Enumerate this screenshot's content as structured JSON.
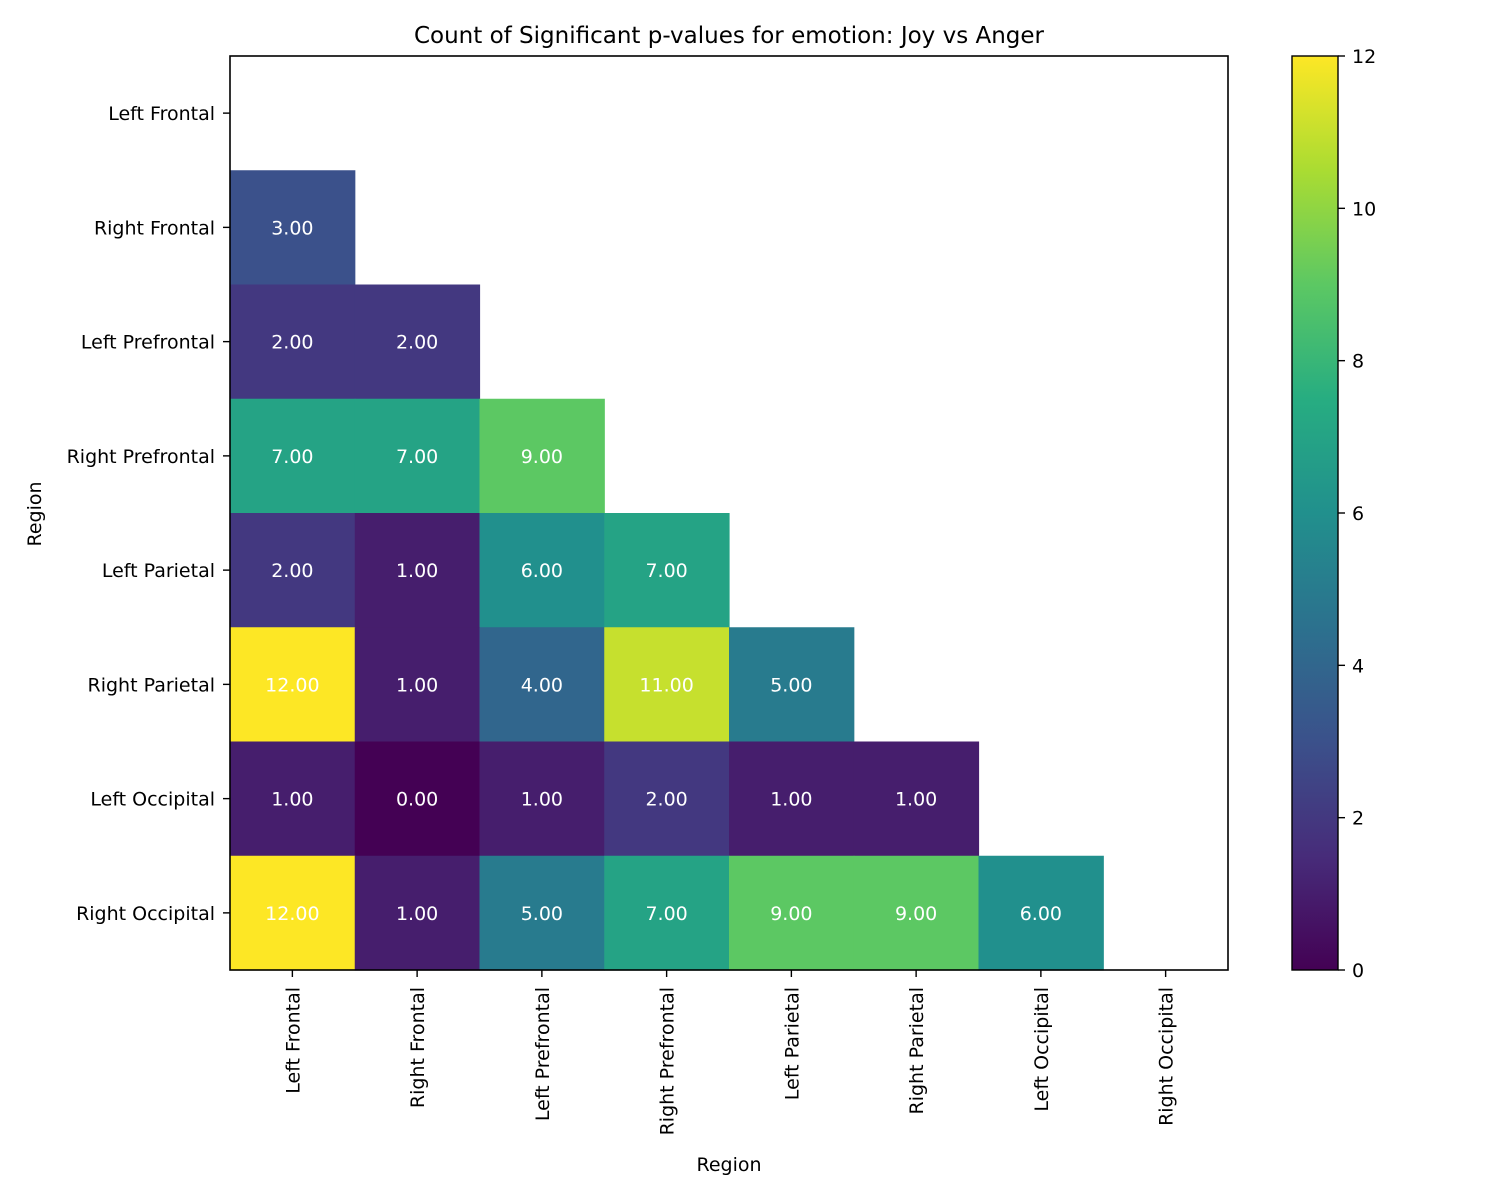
{
  "chart_data": {
    "type": "heatmap",
    "title": "Count of Significant p-values for emotion: Joy vs Anger",
    "xlabel": "Region",
    "ylabel": "Region",
    "x_categories": [
      "Left Frontal",
      "Right Frontal",
      "Left Prefrontal",
      "Right Prefrontal",
      "Left Parietal",
      "Right Parietal",
      "Left Occipital",
      "Right Occipital"
    ],
    "y_categories": [
      "Left Frontal",
      "Right Frontal",
      "Left Prefrontal",
      "Right Prefrontal",
      "Left Parietal",
      "Right Parietal",
      "Left Occipital",
      "Right Occipital"
    ],
    "values": [
      [
        null,
        null,
        null,
        null,
        null,
        null,
        null,
        null
      ],
      [
        3,
        null,
        null,
        null,
        null,
        null,
        null,
        null
      ],
      [
        2,
        2,
        null,
        null,
        null,
        null,
        null,
        null
      ],
      [
        7,
        7,
        9,
        null,
        null,
        null,
        null,
        null
      ],
      [
        2,
        1,
        6,
        7,
        null,
        null,
        null,
        null
      ],
      [
        12,
        1,
        4,
        11,
        5,
        null,
        null,
        null
      ],
      [
        1,
        0,
        1,
        2,
        1,
        1,
        null,
        null
      ],
      [
        12,
        1,
        5,
        7,
        9,
        9,
        6,
        null
      ]
    ],
    "cell_labels": [
      [
        null,
        null,
        null,
        null,
        null,
        null,
        null,
        null
      ],
      [
        "3.00",
        null,
        null,
        null,
        null,
        null,
        null,
        null
      ],
      [
        "2.00",
        "2.00",
        null,
        null,
        null,
        null,
        null,
        null
      ],
      [
        "7.00",
        "7.00",
        "9.00",
        null,
        null,
        null,
        null,
        null
      ],
      [
        "2.00",
        "1.00",
        "6.00",
        "7.00",
        null,
        null,
        null,
        null
      ],
      [
        "12.00",
        "1.00",
        "4.00",
        "11.00",
        "5.00",
        null,
        null,
        null
      ],
      [
        "1.00",
        "0.00",
        "1.00",
        "2.00",
        "1.00",
        "1.00",
        null,
        null
      ],
      [
        "12.00",
        "1.00",
        "5.00",
        "7.00",
        "9.00",
        "9.00",
        "6.00",
        null
      ]
    ],
    "colormap": "viridis",
    "vmin": 0,
    "vmax": 12,
    "colorbar_ticks": [
      "0",
      "2",
      "4",
      "6",
      "8",
      "10",
      "12"
    ],
    "grid": false
  }
}
